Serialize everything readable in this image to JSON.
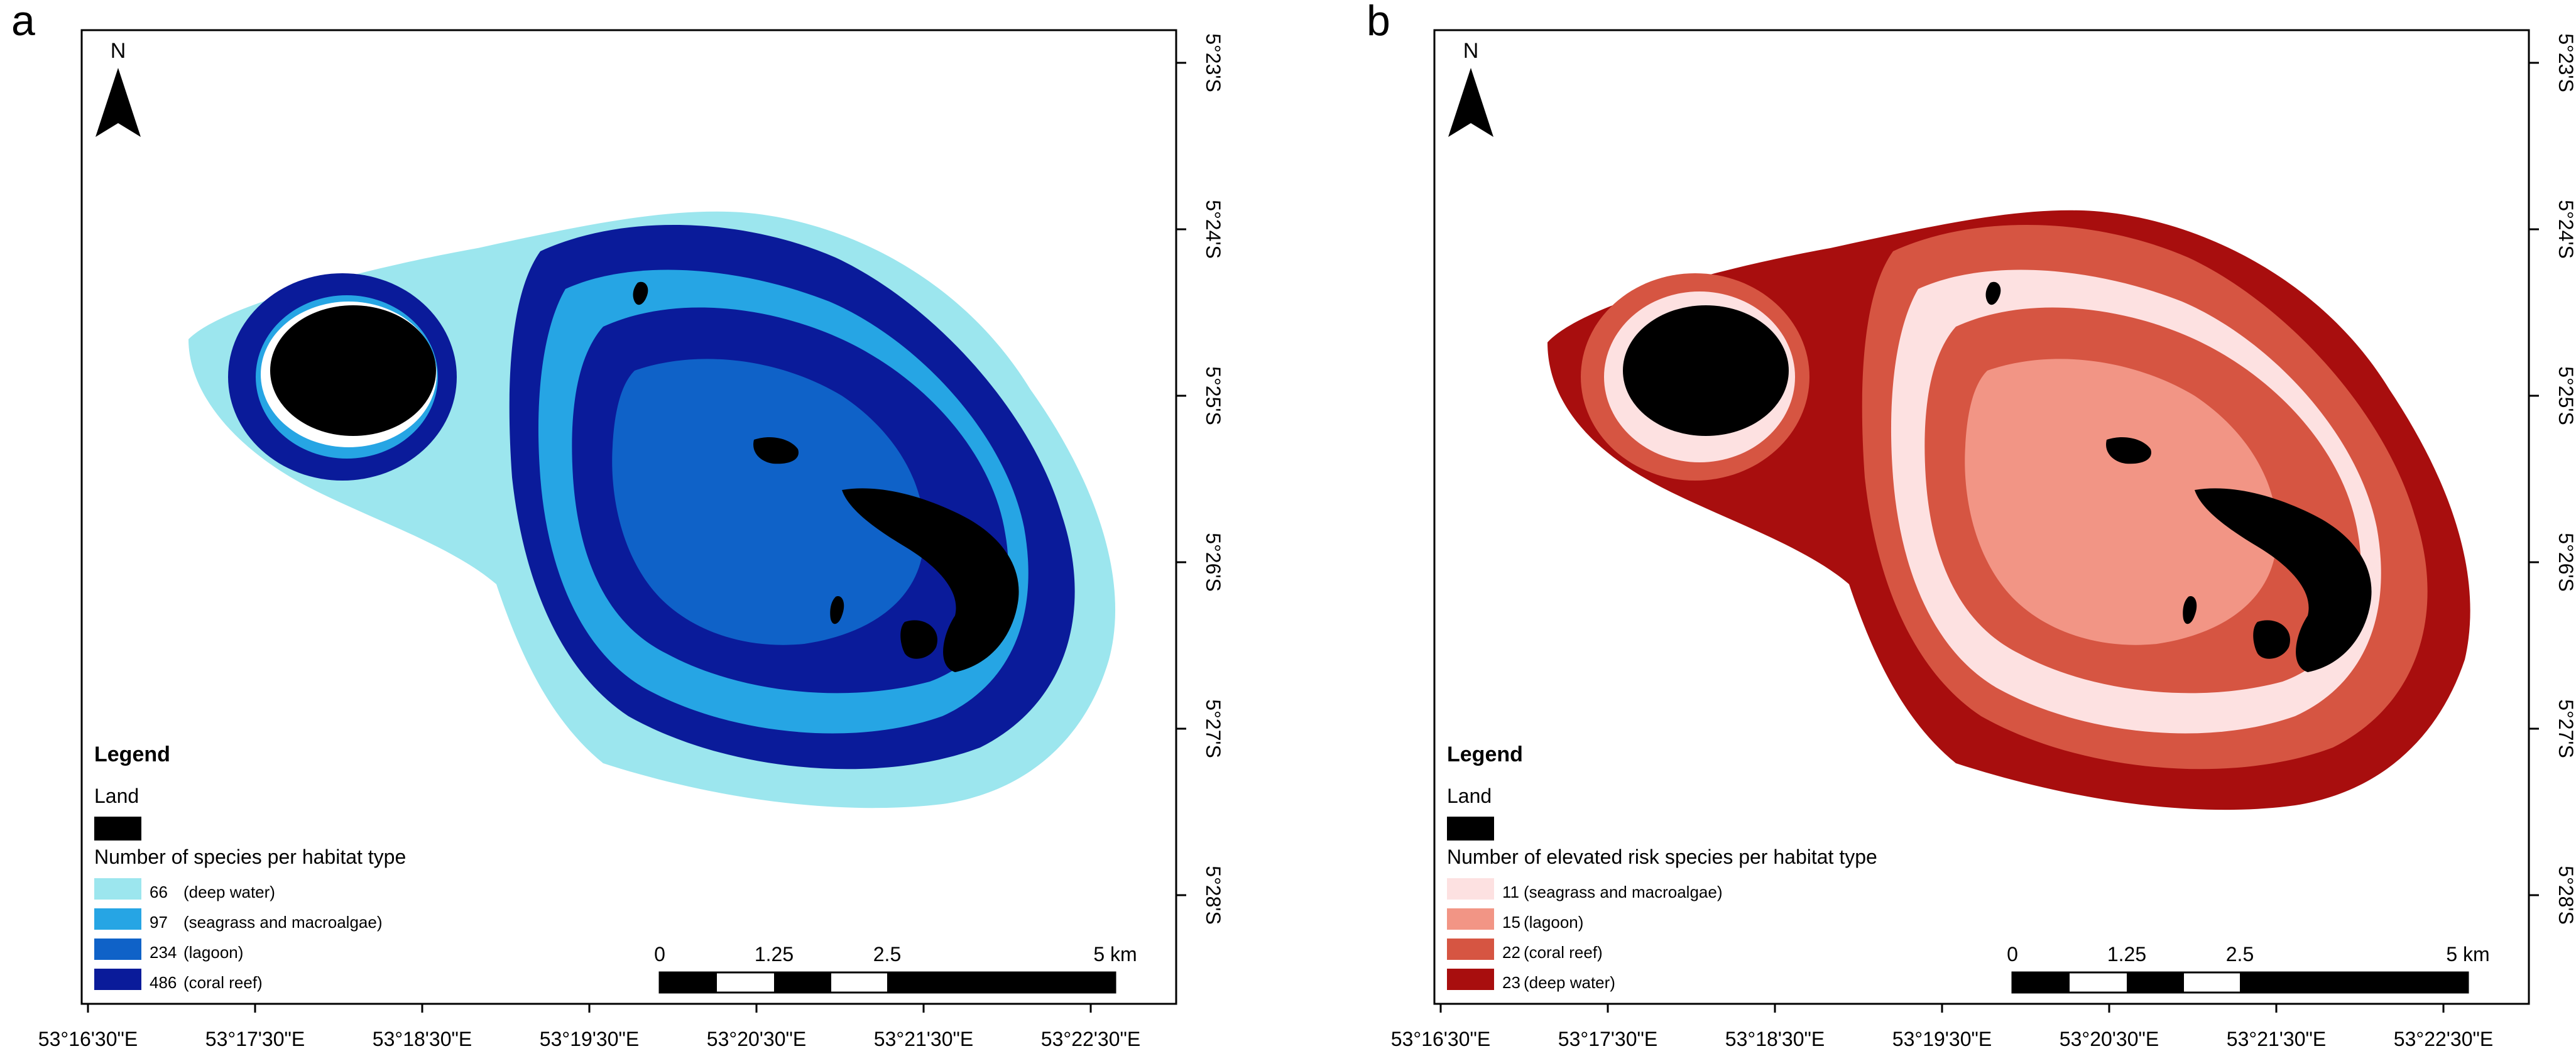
{
  "figure": {
    "panel_a_label": "a",
    "panel_b_label": "b"
  },
  "compass": {
    "label": "N"
  },
  "lat_ticks": [
    "5°23'S",
    "5°24'S",
    "5°25'S",
    "5°26'S",
    "5°27'S",
    "5°28'S"
  ],
  "lon_ticks": [
    "53°16'30\"E",
    "53°17'30\"E",
    "53°18'30\"E",
    "53°19'30\"E",
    "53°20'30\"E",
    "53°21'30\"E",
    "53°22'30\"E"
  ],
  "scale_bar": {
    "labels": [
      "0",
      "1.25",
      "2.5",
      "5 km"
    ]
  },
  "panel_a": {
    "legend_title": "Legend",
    "land_label": "Land",
    "category_title": "Number of species per habitat type",
    "items": [
      {
        "value": "66",
        "desc": "(deep water)",
        "color": "#9ce6ee"
      },
      {
        "value": "97",
        "desc": "(seagrass and macroalgae)",
        "color": "#26a5e4"
      },
      {
        "value": "234",
        "desc": "(lagoon)",
        "color": "#0f62c8"
      },
      {
        "value": "486",
        "desc": "(coral reef)",
        "color": "#0a1b9a"
      }
    ]
  },
  "panel_b": {
    "legend_title": "Legend",
    "land_label": "Land",
    "category_title": "Number of elevated risk species per habitat type",
    "items": [
      {
        "value": "11",
        "desc": "(seagrass and macroalgae)",
        "color": "#fde1e1"
      },
      {
        "value": "15",
        "desc": "(lagoon)",
        "color": "#f29585"
      },
      {
        "value": "22",
        "desc": "(coral reef)",
        "color": "#d65542"
      },
      {
        "value": "23",
        "desc": "(deep water)",
        "color": "#a80e0e"
      }
    ]
  }
}
